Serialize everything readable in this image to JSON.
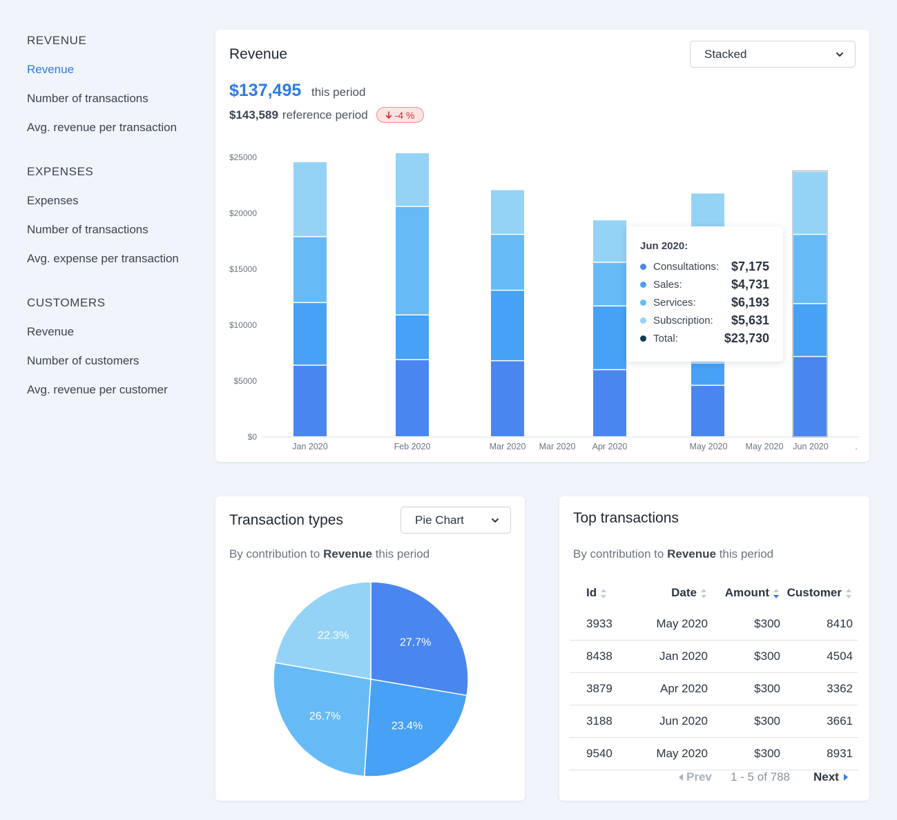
{
  "sidebar": {
    "groups": [
      {
        "heading": "REVENUE",
        "items": [
          "Revenue",
          "Number of transactions",
          "Avg. revenue per transaction"
        ]
      },
      {
        "heading": "EXPENSES",
        "items": [
          "Expenses",
          "Number of transactions",
          "Avg. expense per transaction"
        ]
      },
      {
        "heading": "CUSTOMERS",
        "items": [
          "Revenue",
          "Number of customers",
          "Avg. revenue per customer"
        ]
      }
    ]
  },
  "revenue_card": {
    "title": "Revenue",
    "select_value": "Stacked",
    "total_value": "$137,495",
    "total_suffix": "this period",
    "reference_value": "$143,589",
    "reference_suffix": "reference period",
    "change_badge": "-4 %"
  },
  "tooltip": {
    "title": "Jun 2020:",
    "rows": [
      {
        "label": "Consultations:",
        "value": "$7,175",
        "color": "#4a86f0"
      },
      {
        "label": "Sales:",
        "value": "$4,731",
        "color": "#47a1f4"
      },
      {
        "label": "Services:",
        "value": "$6,193",
        "color": "#66bbf6"
      },
      {
        "label": "Subscription:",
        "value": "$5,631",
        "color": "#94d3f6"
      },
      {
        "label": "Total:",
        "value": "$23,730",
        "color": "#0f3a55"
      }
    ]
  },
  "types_card": {
    "title": "Transaction types",
    "select_value": "Pie Chart",
    "subtitle_pre": "By contribution to",
    "subtitle_bold": "Revenue",
    "subtitle_post": "this period"
  },
  "top_card": {
    "title": "Top transactions",
    "subtitle_pre": "By contribution to",
    "subtitle_bold": "Revenue",
    "subtitle_post": "this period",
    "columns": [
      "Id",
      "Date",
      "Amount",
      "Customer"
    ],
    "rows": [
      [
        "3933",
        "May 2020",
        "$300",
        "8410"
      ],
      [
        "8438",
        "Jan 2020",
        "$300",
        "4504"
      ],
      [
        "3879",
        "Apr 2020",
        "$300",
        "3362"
      ],
      [
        "3188",
        "Jun 2020",
        "$300",
        "3661"
      ],
      [
        "9540",
        "May 2020",
        "$300",
        "8931"
      ]
    ],
    "prev_label": "Prev",
    "range_label": "1 - 5 of 788",
    "next_label": "Next"
  },
  "colors": {
    "consultations": "#4a86f0",
    "sales": "#47a1f4",
    "services": "#66bbf6",
    "subscription": "#94d3f6",
    "accent": "#2f7be8"
  },
  "chart_data": [
    {
      "type": "bar",
      "stacked": true,
      "ylim": [
        0,
        25000
      ],
      "y_ticks": [
        "$0",
        "$5000",
        "$10000",
        "$15000",
        "$20000",
        "$25000"
      ],
      "y_tick_values": [
        0,
        5000,
        10000,
        15000,
        20000,
        25000
      ],
      "x_tick_labels": [
        "Jan 2020",
        "Feb 2020",
        "Mar 2020",
        "Mar 2020",
        "Apr 2020",
        "May 2020",
        "May 2020",
        "Jun 2020",
        "."
      ],
      "categories": [
        "Jan 2020",
        "Feb 2020",
        "Mar 2020",
        "Apr 2020",
        "May 2020",
        "Jun 2020"
      ],
      "series": [
        {
          "name": "Consultations",
          "values": [
            6400,
            6900,
            6800,
            6000,
            4600,
            7175
          ]
        },
        {
          "name": "Sales",
          "values": [
            5600,
            4000,
            6300,
            5700,
            2000,
            4731
          ]
        },
        {
          "name": "Services",
          "values": [
            5900,
            9700,
            5000,
            3900,
            8800,
            6193
          ]
        },
        {
          "name": "Subscription",
          "values": [
            6700,
            4800,
            4000,
            3800,
            6400,
            5631
          ]
        }
      ],
      "highlighted": "Jun 2020"
    },
    {
      "type": "pie",
      "labels": [
        "27.7%",
        "23.4%",
        "26.7%",
        "22.3%"
      ],
      "values": [
        27.7,
        23.4,
        26.7,
        22.3
      ]
    }
  ]
}
